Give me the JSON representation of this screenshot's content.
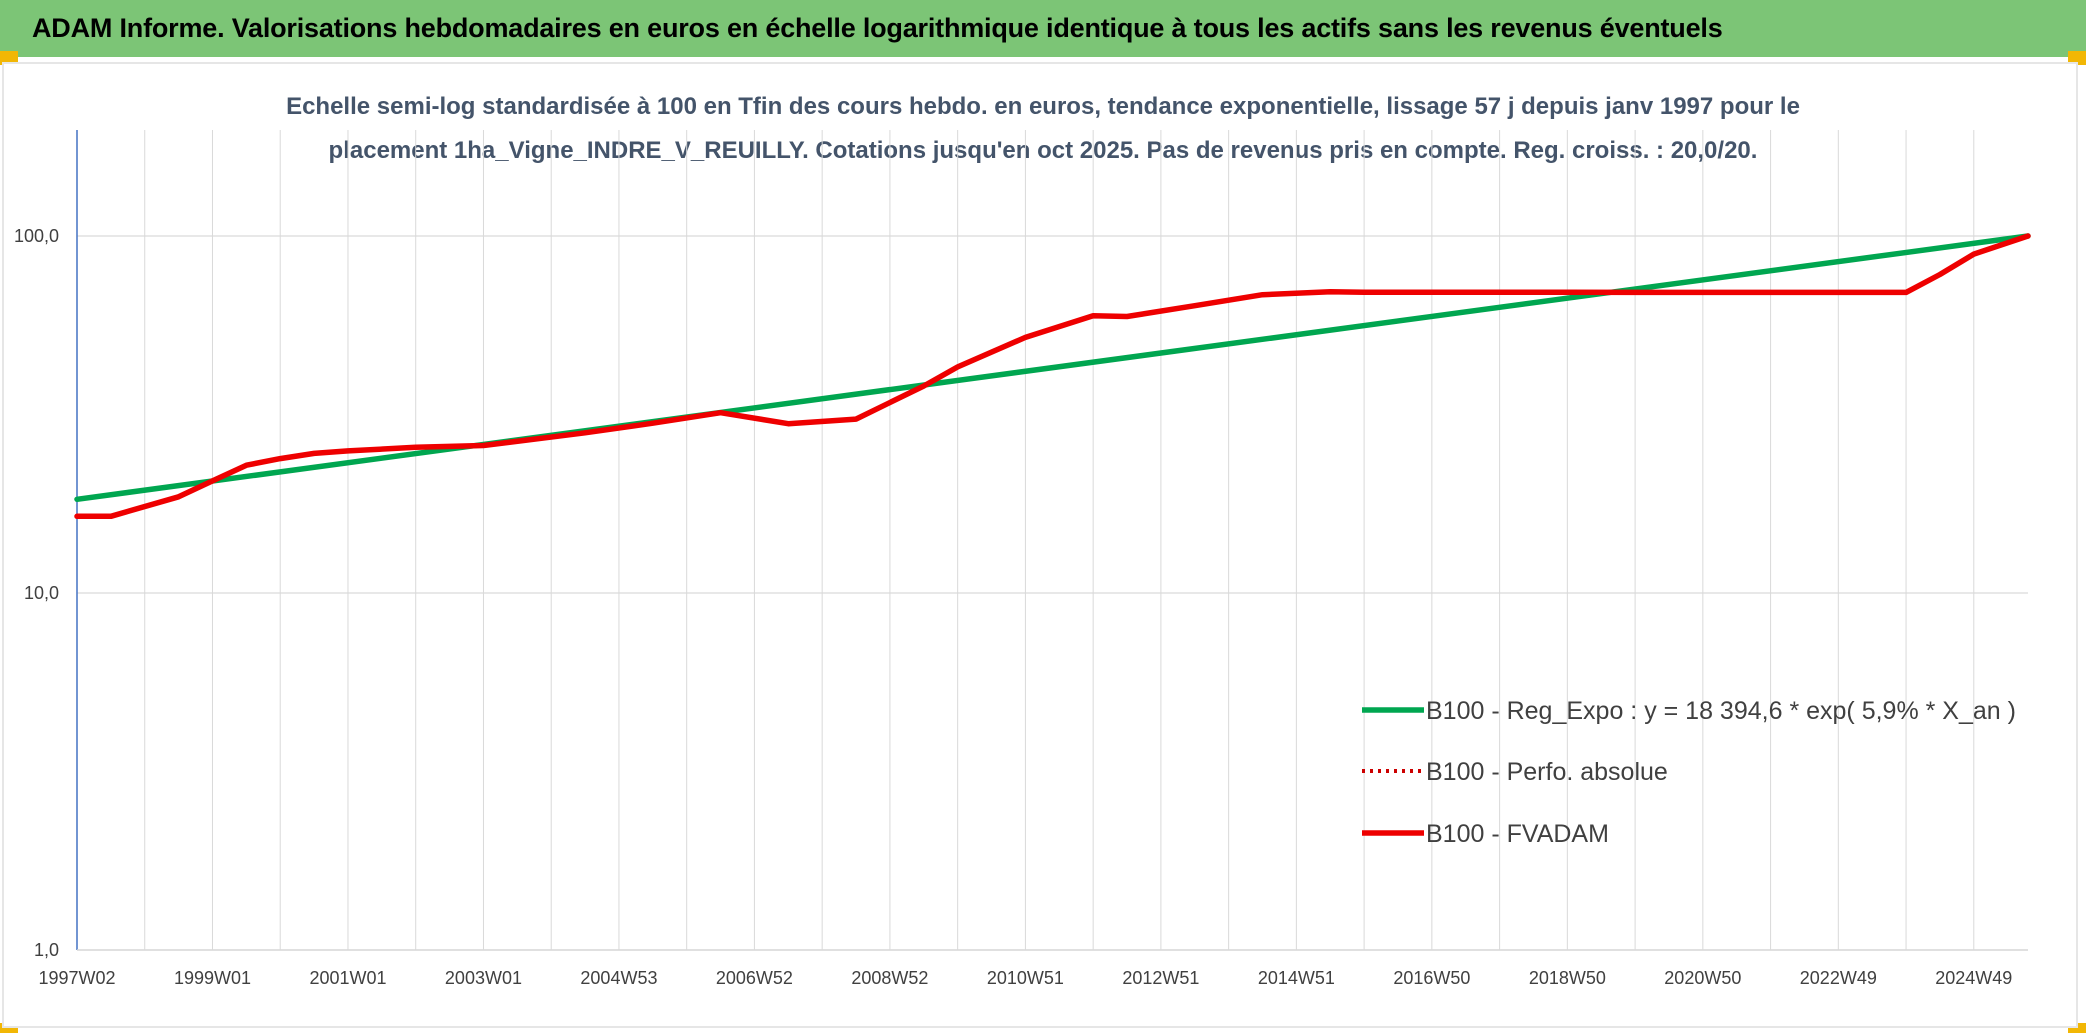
{
  "banner": {
    "title": "ADAM Informe. Valorisations hebdomadaires en euros en échelle logarithmique identique à tous les actifs sans les revenus éventuels"
  },
  "colors": {
    "banner": "#7cc576",
    "corner": "#f2b705",
    "trend": "#00a650",
    "fvadam": "#ee0000",
    "perfo": "#cc0000",
    "subtitle": "#44546a"
  },
  "chart_data": {
    "type": "line",
    "title_lines": [
      "Echelle semi-log standardisée à 100 en Tfin des cours hebdo. en euros, tendance exponentielle, lissage 57 j depuis janv 1997 pour le",
      "placement 1ha_Vigne_INDRE_V_REUILLY. Cotations jusqu'en oct 2025. Pas de revenus pris en compte. Reg. croiss. : 20,0/20."
    ],
    "y_scale": "log",
    "ylim": [
      1,
      100
    ],
    "y_ticks": [
      {
        "value": 100,
        "label": "100,0"
      },
      {
        "value": 10,
        "label": "10,0"
      },
      {
        "value": 1,
        "label": "1,0"
      }
    ],
    "x_range": [
      1997.0,
      2025.8
    ],
    "x_ticks": [
      {
        "t": 1997.0,
        "label": "1997W02"
      },
      {
        "t": 1999.0,
        "label": "1999W01"
      },
      {
        "t": 2001.0,
        "label": "2001W01"
      },
      {
        "t": 2003.0,
        "label": "2003W01"
      },
      {
        "t": 2005.0,
        "label": "2004W53"
      },
      {
        "t": 2007.0,
        "label": "2006W52"
      },
      {
        "t": 2009.0,
        "label": "2008W52"
      },
      {
        "t": 2011.0,
        "label": "2010W51"
      },
      {
        "t": 2013.0,
        "label": "2012W51"
      },
      {
        "t": 2015.0,
        "label": "2014W51"
      },
      {
        "t": 2017.0,
        "label": "2016W50"
      },
      {
        "t": 2019.0,
        "label": "2018W50"
      },
      {
        "t": 2021.0,
        "label": "2020W50"
      },
      {
        "t": 2023.0,
        "label": "2022W49"
      },
      {
        "t": 2025.0,
        "label": "2024W49"
      }
    ],
    "grid": true,
    "legend_position": "right",
    "series": [
      {
        "name": "B100 - Reg_Expo : y = 18 394,6 * exp( 5,9% *  X_an )",
        "color": "#00a650",
        "style": "solid",
        "x": [
          1997.0,
          2025.8
        ],
        "y": [
          18.3,
          100.0
        ]
      },
      {
        "name": "B100 - Perfo. absolue",
        "color": "#cc0000",
        "style": "dotted",
        "x": [],
        "y": []
      },
      {
        "name": "B100 - FVADAM",
        "color": "#ee0000",
        "style": "solid",
        "x": [
          1997.0,
          1997.5,
          1998.5,
          1999.0,
          1999.5,
          2000.0,
          2000.5,
          2001.0,
          2002.0,
          2003.0,
          2004.5,
          2005.5,
          2006.5,
          2007.5,
          2008.5,
          2009.5,
          2010.0,
          2011.0,
          2012.0,
          2012.5,
          2013.5,
          2014.5,
          2015.5,
          2016.0,
          2017.0,
          2018.0,
          2019.0,
          2020.0,
          2021.0,
          2022.0,
          2023.0,
          2024.0,
          2024.5,
          2025.0,
          2025.8
        ],
        "y": [
          16.4,
          16.4,
          18.6,
          20.6,
          22.8,
          23.8,
          24.6,
          25.0,
          25.6,
          25.9,
          28.1,
          29.9,
          32.0,
          29.8,
          30.7,
          38.0,
          43.0,
          52.0,
          59.8,
          59.5,
          63.8,
          68.5,
          69.8,
          69.6,
          69.6,
          69.6,
          69.6,
          69.5,
          69.5,
          69.5,
          69.5,
          69.5,
          78.0,
          89.0,
          100.0
        ]
      }
    ]
  }
}
